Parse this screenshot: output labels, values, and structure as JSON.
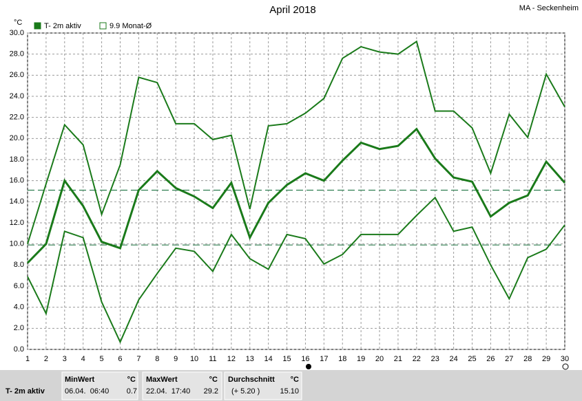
{
  "chart_data": {
    "type": "line",
    "title": "April 2018",
    "location": "MA - Seckenheim",
    "y_unit": "°C",
    "legend": [
      {
        "label": "T- 2m aktiv",
        "color": "#1a7a1a",
        "filled": true
      },
      {
        "label": "9.9 Monat-Ø",
        "color": "#1a7a1a",
        "filled": false
      }
    ],
    "x": [
      1,
      2,
      3,
      4,
      5,
      6,
      7,
      8,
      9,
      10,
      11,
      12,
      13,
      14,
      15,
      16,
      17,
      18,
      19,
      20,
      21,
      22,
      23,
      24,
      25,
      26,
      27,
      28,
      29,
      30
    ],
    "series": [
      {
        "color": "#1a7a1a",
        "width": 2,
        "values": [
          10.0,
          15.7,
          21.3,
          19.4,
          12.8,
          17.5,
          25.8,
          25.3,
          21.4,
          21.4,
          19.9,
          20.3,
          13.3,
          21.2,
          21.4,
          22.4,
          23.8,
          27.6,
          28.7,
          28.2,
          28.0,
          29.2,
          22.6,
          22.6,
          21.0,
          16.7,
          22.3,
          20.1,
          26.1,
          23.0
        ]
      },
      {
        "color": "#1a7a1a",
        "width": 3,
        "values": [
          8.2,
          10.0,
          16.0,
          13.6,
          10.2,
          9.6,
          15.1,
          16.9,
          15.3,
          14.5,
          13.4,
          15.8,
          10.6,
          13.9,
          15.6,
          16.7,
          16.0,
          17.9,
          19.6,
          19.0,
          19.3,
          20.9,
          18.1,
          16.3,
          15.9,
          12.6,
          13.9,
          14.6,
          17.8,
          15.8
        ]
      },
      {
        "color": "#1a7a1a",
        "width": 2,
        "values": [
          6.9,
          3.4,
          11.2,
          10.6,
          4.5,
          0.7,
          4.7,
          7.2,
          9.6,
          9.3,
          7.4,
          10.9,
          8.6,
          7.6,
          10.9,
          10.5,
          8.1,
          9.0,
          10.9,
          10.9,
          10.9,
          12.7,
          14.4,
          11.2,
          11.6,
          8.0,
          4.8,
          8.7,
          9.5,
          11.8
        ]
      }
    ],
    "reference_lines": [
      {
        "value": 15.1,
        "color": "#2e7d4f"
      },
      {
        "value": 9.9,
        "color": "#2e7d4f"
      }
    ],
    "xlim": [
      1,
      30
    ],
    "ylim": [
      0,
      30
    ],
    "xticks": [
      1,
      2,
      3,
      4,
      5,
      6,
      7,
      8,
      9,
      10,
      11,
      12,
      13,
      14,
      15,
      16,
      17,
      18,
      19,
      20,
      21,
      22,
      23,
      24,
      25,
      26,
      27,
      28,
      29,
      30
    ],
    "yticks": [
      {
        "value": 0,
        "label": "0.0"
      },
      {
        "value": 2,
        "label": "2.0"
      },
      {
        "value": 4,
        "label": "4.0"
      },
      {
        "value": 6,
        "label": "6.0"
      },
      {
        "value": 8,
        "label": "8.0"
      },
      {
        "value": 10,
        "label": "10.0"
      },
      {
        "value": 12,
        "label": "12.0"
      },
      {
        "value": 14,
        "label": "14.0"
      },
      {
        "value": 16,
        "label": "16.0"
      },
      {
        "value": 18,
        "label": "18.0"
      },
      {
        "value": 20,
        "label": "20.0"
      },
      {
        "value": 22,
        "label": "22.0"
      },
      {
        "value": 24,
        "label": "24.0"
      },
      {
        "value": 26,
        "label": "26.0"
      },
      {
        "value": 28,
        "label": "28.0"
      },
      {
        "value": 30,
        "label": "30.0"
      }
    ],
    "grid": true
  },
  "table": {
    "row_label": "T- 2m aktiv",
    "headers": [
      "MinWert",
      "°C",
      "MaxWert",
      "°C",
      "Durchschnitt",
      "°C"
    ],
    "row": [
      "06.04.  06:40",
      "0.7",
      "22.04.  17:40",
      "29.2",
      "(+ 5.20 )",
      "15.10"
    ]
  }
}
